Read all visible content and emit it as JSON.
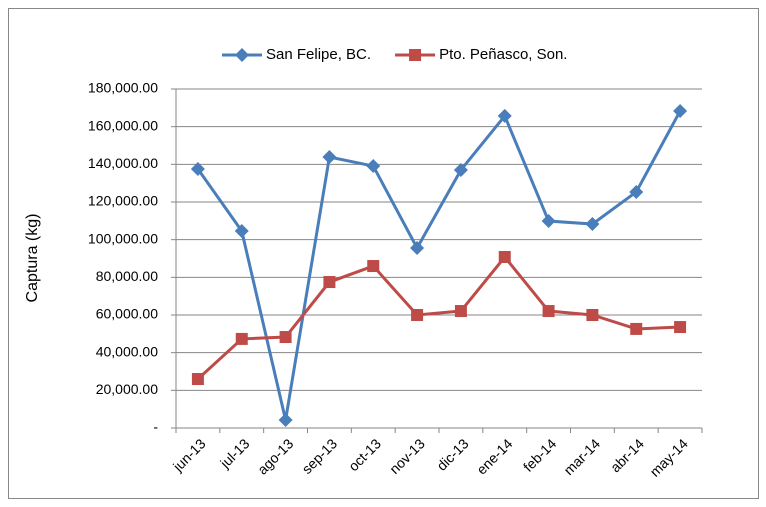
{
  "chart_data": {
    "type": "line",
    "y_label": "Captura (kg)",
    "categories": [
      "jun-13",
      "jul-13",
      "ago-13",
      "sep-13",
      "oct-13",
      "nov-13",
      "dic-13",
      "ene-14",
      "feb-14",
      "mar-14",
      "abr-14",
      "may-14"
    ],
    "series": [
      {
        "name": "San Felipe, BC.",
        "color": "#4a7ebb",
        "marker": "diamond",
        "values": [
          137500,
          104600,
          4250,
          143900,
          139100,
          95600,
          137000,
          165700,
          109900,
          108300,
          125300,
          168300
        ]
      },
      {
        "name": "Pto. Peñasco, Son.",
        "color": "#be4b48",
        "marker": "square",
        "values": [
          26000,
          47300,
          48300,
          77500,
          86000,
          60000,
          62100,
          90800,
          62100,
          60000,
          52600,
          53600
        ]
      }
    ],
    "ylim": [
      0,
      180000
    ],
    "yticks": [
      {
        "value": 0,
        "label": "-"
      },
      {
        "value": 20000,
        "label": "20,000.00"
      },
      {
        "value": 40000,
        "label": "40,000.00"
      },
      {
        "value": 60000,
        "label": "60,000.00"
      },
      {
        "value": 80000,
        "label": "80,000.00"
      },
      {
        "value": 100000,
        "label": "100,000.00"
      },
      {
        "value": 120000,
        "label": "120,000.00"
      },
      {
        "value": 140000,
        "label": "140,000.00"
      },
      {
        "value": 160000,
        "label": "160,000.00"
      },
      {
        "value": 180000,
        "label": "180,000.00"
      }
    ],
    "grid": true,
    "legend": "top"
  }
}
